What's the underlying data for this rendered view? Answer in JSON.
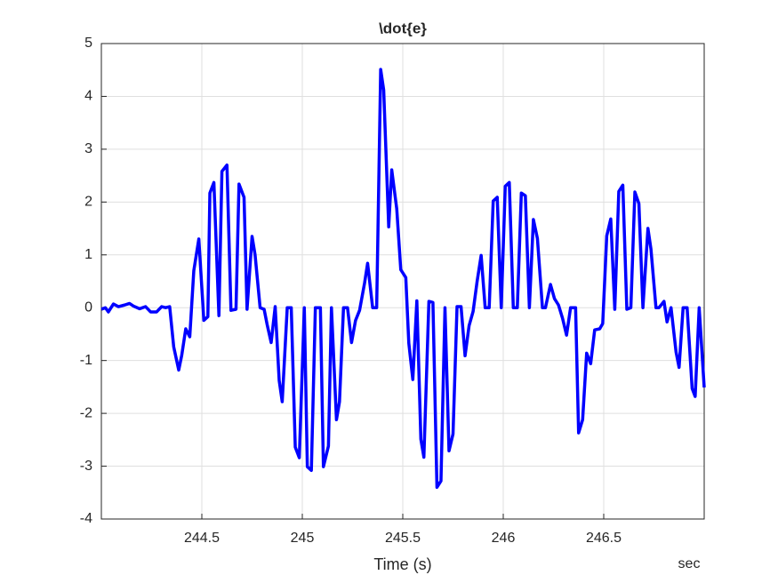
{
  "chart_data": {
    "type": "line",
    "title": "\\dot{e}",
    "x_label": "Time (s)",
    "annotation": "sec",
    "xlim": [
      244,
      247
    ],
    "ylim": [
      -4,
      5
    ],
    "xticks": [
      244.5,
      245,
      245.5,
      246,
      246.5
    ],
    "yticks": [
      -4,
      -3,
      -2,
      -1,
      0,
      1,
      2,
      3,
      4,
      5
    ],
    "grid": true,
    "x": [
      244.0,
      244.02,
      244.035,
      244.06,
      244.085,
      244.115,
      244.14,
      244.16,
      244.19,
      244.22,
      244.245,
      244.275,
      244.3,
      244.32,
      244.34,
      244.36,
      244.385,
      244.4,
      244.42,
      244.44,
      244.46,
      244.485,
      244.51,
      244.53,
      244.54,
      244.56,
      244.585,
      244.6,
      244.625,
      244.645,
      244.67,
      244.685,
      244.71,
      244.725,
      244.75,
      244.765,
      244.79,
      244.81,
      244.825,
      244.845,
      244.865,
      244.885,
      244.9,
      244.925,
      244.945,
      244.965,
      244.985,
      245.01,
      245.025,
      245.045,
      245.065,
      245.09,
      245.105,
      245.13,
      245.145,
      245.17,
      245.185,
      245.205,
      245.225,
      245.245,
      245.265,
      245.285,
      245.31,
      245.325,
      245.35,
      245.37,
      245.39,
      245.405,
      245.43,
      245.445,
      245.47,
      245.49,
      245.515,
      245.53,
      245.55,
      245.57,
      245.59,
      245.605,
      245.63,
      245.65,
      245.67,
      245.69,
      245.71,
      245.73,
      245.75,
      245.77,
      245.79,
      245.81,
      245.83,
      245.85,
      245.87,
      245.89,
      245.91,
      245.93,
      245.95,
      245.97,
      245.99,
      246.01,
      246.03,
      246.05,
      246.07,
      246.09,
      246.11,
      246.13,
      246.15,
      246.17,
      246.195,
      246.21,
      246.235,
      246.255,
      246.275,
      246.295,
      246.315,
      246.335,
      246.36,
      246.375,
      246.395,
      246.415,
      246.435,
      246.455,
      246.48,
      246.495,
      246.515,
      246.535,
      246.555,
      246.575,
      246.595,
      246.615,
      246.635,
      246.655,
      246.675,
      246.695,
      246.72,
      246.735,
      246.76,
      246.775,
      246.8,
      246.815,
      246.835,
      246.86,
      246.875,
      246.895,
      246.915,
      246.94,
      246.955,
      246.975,
      247.0
    ],
    "series": [
      {
        "color": "#0000ff",
        "values": [
          -0.03,
          0,
          -0.08,
          0.07,
          0.02,
          0.05,
          0.08,
          0.03,
          -0.02,
          0.02,
          -0.08,
          -0.08,
          0.02,
          0,
          0.02,
          -0.74,
          -1.18,
          -0.9,
          -0.4,
          -0.55,
          0.7,
          1.3,
          -0.24,
          -0.17,
          2.17,
          2.37,
          -0.15,
          2.58,
          2.7,
          -0.05,
          -0.03,
          2.34,
          2.09,
          -0.03,
          1.35,
          1.0,
          0,
          -0.03,
          -0.32,
          -0.66,
          0.02,
          -1.38,
          -1.78,
          0,
          0,
          -2.64,
          -2.84,
          0,
          -3.01,
          -3.08,
          0,
          0,
          -3.01,
          -2.62,
          0,
          -2.12,
          -1.78,
          0,
          0,
          -0.66,
          -0.24,
          -0.05,
          0.47,
          0.84,
          0,
          0,
          4.51,
          4.12,
          1.53,
          2.61,
          1.87,
          0.72,
          0.57,
          -0.67,
          -1.36,
          0.13,
          -2.49,
          -2.83,
          0.12,
          0.1,
          -3.4,
          -3.28,
          0,
          -2.71,
          -2.39,
          0.02,
          0.02,
          -0.91,
          -0.34,
          -0.07,
          0.5,
          0.99,
          0,
          0,
          2.02,
          2.09,
          0,
          2.3,
          2.37,
          0,
          0,
          2.17,
          2.12,
          0,
          1.67,
          1.31,
          0,
          0,
          0.44,
          0.17,
          0.05,
          -0.2,
          -0.52,
          0,
          0,
          -2.37,
          -2.12,
          -0.86,
          -1.06,
          -0.42,
          -0.4,
          -0.3,
          1.36,
          1.68,
          -0.03,
          2.2,
          2.32,
          -0.03,
          0,
          2.19,
          1.97,
          0,
          1.5,
          1.11,
          0,
          0,
          0.12,
          -0.27,
          0,
          -0.84,
          -1.13,
          0,
          0,
          -1.53,
          -1.68,
          0,
          -1.51
        ]
      }
    ]
  }
}
